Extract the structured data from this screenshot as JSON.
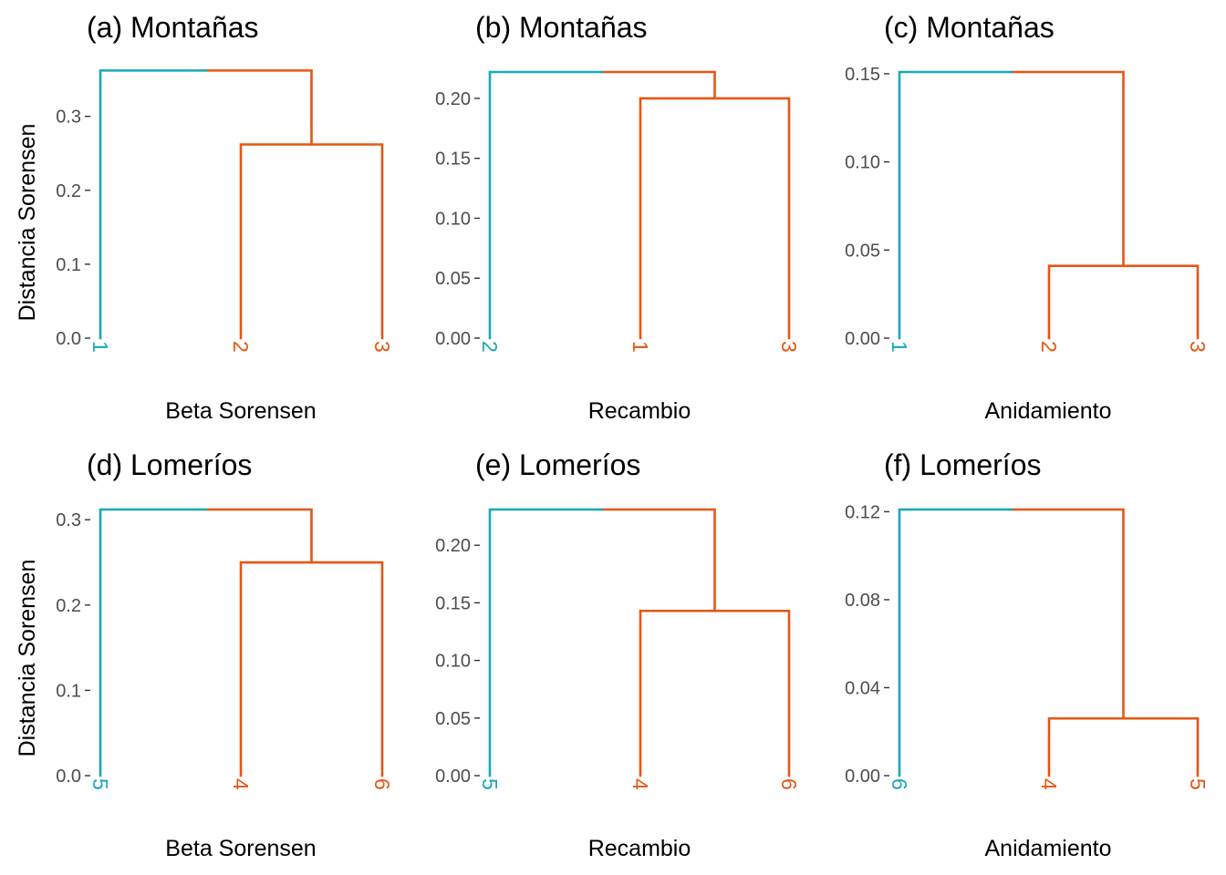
{
  "colors": {
    "cluster_a": "#17a8b8",
    "cluster_b": "#e85512"
  },
  "chart_data": [
    {
      "type": "dendrogram",
      "title": "(a) Montañas",
      "xlabel": "Beta Sorensen",
      "ylabel": "Distancia Sorensen",
      "yticks": [
        0.0,
        0.1,
        0.2,
        0.3
      ],
      "yticklabels": [
        "0.0",
        "0.1",
        "0.2",
        "0.3"
      ],
      "ylim": [
        0,
        0.36
      ],
      "leaves": [
        {
          "label": "1",
          "cluster": "a"
        },
        {
          "label": "2",
          "cluster": "b"
        },
        {
          "label": "3",
          "cluster": "b"
        }
      ],
      "merges": [
        {
          "left": 1,
          "right": 2,
          "height": 0.262
        },
        {
          "left": 0,
          "right": "m0",
          "height": 0.362
        }
      ],
      "grid": false
    },
    {
      "type": "dendrogram",
      "title": "(b) Montañas",
      "xlabel": "Recambio",
      "ylabel": "",
      "yticks": [
        0.0,
        0.05,
        0.1,
        0.15,
        0.2
      ],
      "yticklabels": [
        "0.00",
        "0.05",
        "0.10",
        "0.15",
        "0.20"
      ],
      "ylim": [
        0,
        0.222
      ],
      "leaves": [
        {
          "label": "2",
          "cluster": "a"
        },
        {
          "label": "1",
          "cluster": "b"
        },
        {
          "label": "3",
          "cluster": "b"
        }
      ],
      "merges": [
        {
          "left": 1,
          "right": 2,
          "height": 0.2
        },
        {
          "left": 0,
          "right": "m0",
          "height": 0.222
        }
      ],
      "grid": false
    },
    {
      "type": "dendrogram",
      "title": "(c) Montañas",
      "xlabel": "Anidamiento",
      "ylabel": "",
      "yticks": [
        0.0,
        0.05,
        0.1,
        0.15
      ],
      "yticklabels": [
        "0.00",
        "0.05",
        "0.10",
        "0.15"
      ],
      "ylim": [
        0,
        0.151
      ],
      "leaves": [
        {
          "label": "1",
          "cluster": "a"
        },
        {
          "label": "2",
          "cluster": "b"
        },
        {
          "label": "3",
          "cluster": "b"
        }
      ],
      "merges": [
        {
          "left": 1,
          "right": 2,
          "height": 0.041
        },
        {
          "left": 0,
          "right": "m0",
          "height": 0.151
        }
      ],
      "grid": false
    },
    {
      "type": "dendrogram",
      "title": "(d) Lomeríos",
      "xlabel": "Beta Sorensen",
      "ylabel": "Distancia Sorensen",
      "yticks": [
        0.0,
        0.1,
        0.2,
        0.3
      ],
      "yticklabels": [
        "0.0",
        "0.1",
        "0.2",
        "0.3"
      ],
      "ylim": [
        0,
        0.312
      ],
      "leaves": [
        {
          "label": "5",
          "cluster": "a"
        },
        {
          "label": "4",
          "cluster": "b"
        },
        {
          "label": "6",
          "cluster": "b"
        }
      ],
      "merges": [
        {
          "left": 1,
          "right": 2,
          "height": 0.25
        },
        {
          "left": 0,
          "right": "m0",
          "height": 0.312
        }
      ],
      "grid": false
    },
    {
      "type": "dendrogram",
      "title": "(e) Lomeríos",
      "xlabel": "Recambio",
      "ylabel": "",
      "yticks": [
        0.0,
        0.05,
        0.1,
        0.15,
        0.2
      ],
      "yticklabels": [
        "0.00",
        "0.05",
        "0.10",
        "0.15",
        "0.20"
      ],
      "ylim": [
        0,
        0.231
      ],
      "leaves": [
        {
          "label": "5",
          "cluster": "a"
        },
        {
          "label": "4",
          "cluster": "b"
        },
        {
          "label": "6",
          "cluster": "b"
        }
      ],
      "merges": [
        {
          "left": 1,
          "right": 2,
          "height": 0.143
        },
        {
          "left": 0,
          "right": "m0",
          "height": 0.231
        }
      ],
      "grid": false
    },
    {
      "type": "dendrogram",
      "title": "(f) Lomeríos",
      "xlabel": "Anidamiento",
      "ylabel": "",
      "yticks": [
        0.0,
        0.04,
        0.08,
        0.12
      ],
      "yticklabels": [
        "0.00",
        "0.04",
        "0.08",
        "0.12"
      ],
      "ylim": [
        0,
        0.121
      ],
      "leaves": [
        {
          "label": "6",
          "cluster": "a"
        },
        {
          "label": "4",
          "cluster": "b"
        },
        {
          "label": "5",
          "cluster": "b"
        }
      ],
      "merges": [
        {
          "left": 1,
          "right": 2,
          "height": 0.026
        },
        {
          "left": 0,
          "right": "m0",
          "height": 0.121
        }
      ],
      "grid": false
    }
  ]
}
